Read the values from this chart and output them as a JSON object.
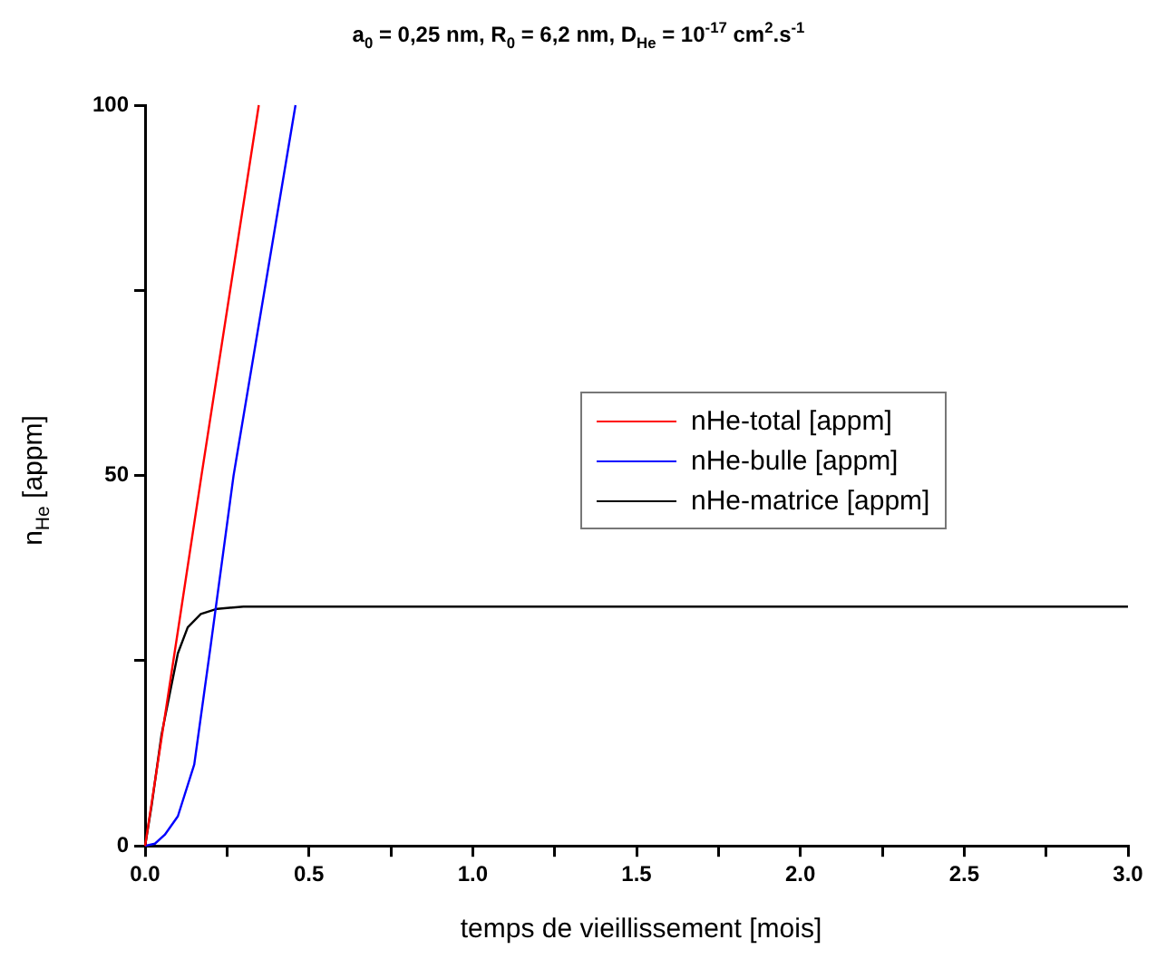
{
  "chart_data": {
    "type": "line",
    "title": "a$_{0}$ = 0,25 nm, R$_{0}$ = 6,2 nm, D$_{He}$ =  10$^{-17}$ cm$^{2}$.s$^{-1}$",
    "xlabel": "temps de vieillissement [mois]",
    "ylabel": "n$_{He}$ [appm]",
    "xlim": [
      0,
      3
    ],
    "ylim": [
      0,
      100
    ],
    "xticks": [
      {
        "value": 0,
        "label": "0.0"
      },
      {
        "value": 0.25,
        "label": null
      },
      {
        "value": 0.5,
        "label": "0.5"
      },
      {
        "value": 0.75,
        "label": null
      },
      {
        "value": 1,
        "label": "1.0"
      },
      {
        "value": 1.25,
        "label": null
      },
      {
        "value": 1.5,
        "label": "1.5"
      },
      {
        "value": 1.75,
        "label": null
      },
      {
        "value": 2,
        "label": "2.0"
      },
      {
        "value": 2.25,
        "label": null
      },
      {
        "value": 2.5,
        "label": "2.5"
      },
      {
        "value": 2.75,
        "label": null
      },
      {
        "value": 3,
        "label": "3.0"
      }
    ],
    "yticks": [
      0,
      {
        "value": 25,
        "label": null
      },
      50,
      {
        "value": 75,
        "label": null
      },
      100
    ],
    "grid": false,
    "legend": "right",
    "marker": "none",
    "line_style": "solid",
    "series": [
      {
        "name": "nHe-total [appm]",
        "color": "#ff0000",
        "x": [
          0,
          0.1,
          0.172,
          0.347
        ],
        "values": [
          0,
          29,
          50,
          100
        ]
      },
      {
        "name": "nHe-bulle [appm]",
        "color": "#0000ff",
        "x": [
          0,
          0.03,
          0.06,
          0.1,
          0.15,
          0.2,
          0.27,
          0.459
        ],
        "values": [
          0,
          0.3,
          1.5,
          4,
          11,
          27,
          50,
          100
        ]
      },
      {
        "name": "nHe-matrice [appm]",
        "color": "#000000",
        "x": [
          0,
          0.02,
          0.05,
          0.1,
          0.13,
          0.17,
          0.22,
          0.3,
          3
        ],
        "values": [
          0,
          5.5,
          15,
          26,
          29.5,
          31.3,
          32,
          32.3,
          32.3
        ]
      }
    ]
  }
}
